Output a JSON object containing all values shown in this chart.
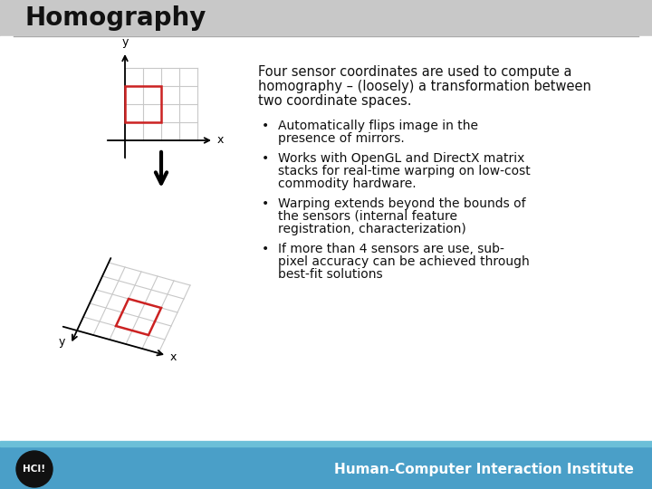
{
  "title": "Homography",
  "title_fontsize": 20,
  "title_fontweight": "bold",
  "bg_top_color": "#c8c8c8",
  "bg_main_color": "#ffffff",
  "footer_bg": "#4a9fc8",
  "footer_text": "Human-Computer Interaction Institute",
  "footer_text_color": "#ffffff",
  "footer_fontsize": 11,
  "header_line_color": "#aaaaaa",
  "intro_lines": [
    "Four sensor coordinates are used to compute a",
    "homography – (loosely) a transformation between",
    "two coordinate spaces."
  ],
  "bullet_groups": [
    [
      "Automatically flips image in the",
      "presence of mirrors."
    ],
    [
      "Works with OpenGL and DirectX matrix",
      "stacks for real-time warping on low-cost",
      "commodity hardware."
    ],
    [
      "Warping extends beyond the bounds of",
      "the sensors (internal feature",
      "registration, characterization)"
    ],
    [
      "If more than 4 sensors are use, sub-",
      "pixel accuracy can be achieved through",
      "best-fit solutions"
    ]
  ],
  "intro_fontsize": 10.5,
  "bullet_fontsize": 10,
  "grid_color": "#c8c8c8",
  "red_color": "#cc2222",
  "black_color": "#111111",
  "white_color": "#ffffff",
  "logo_color": "#111111"
}
